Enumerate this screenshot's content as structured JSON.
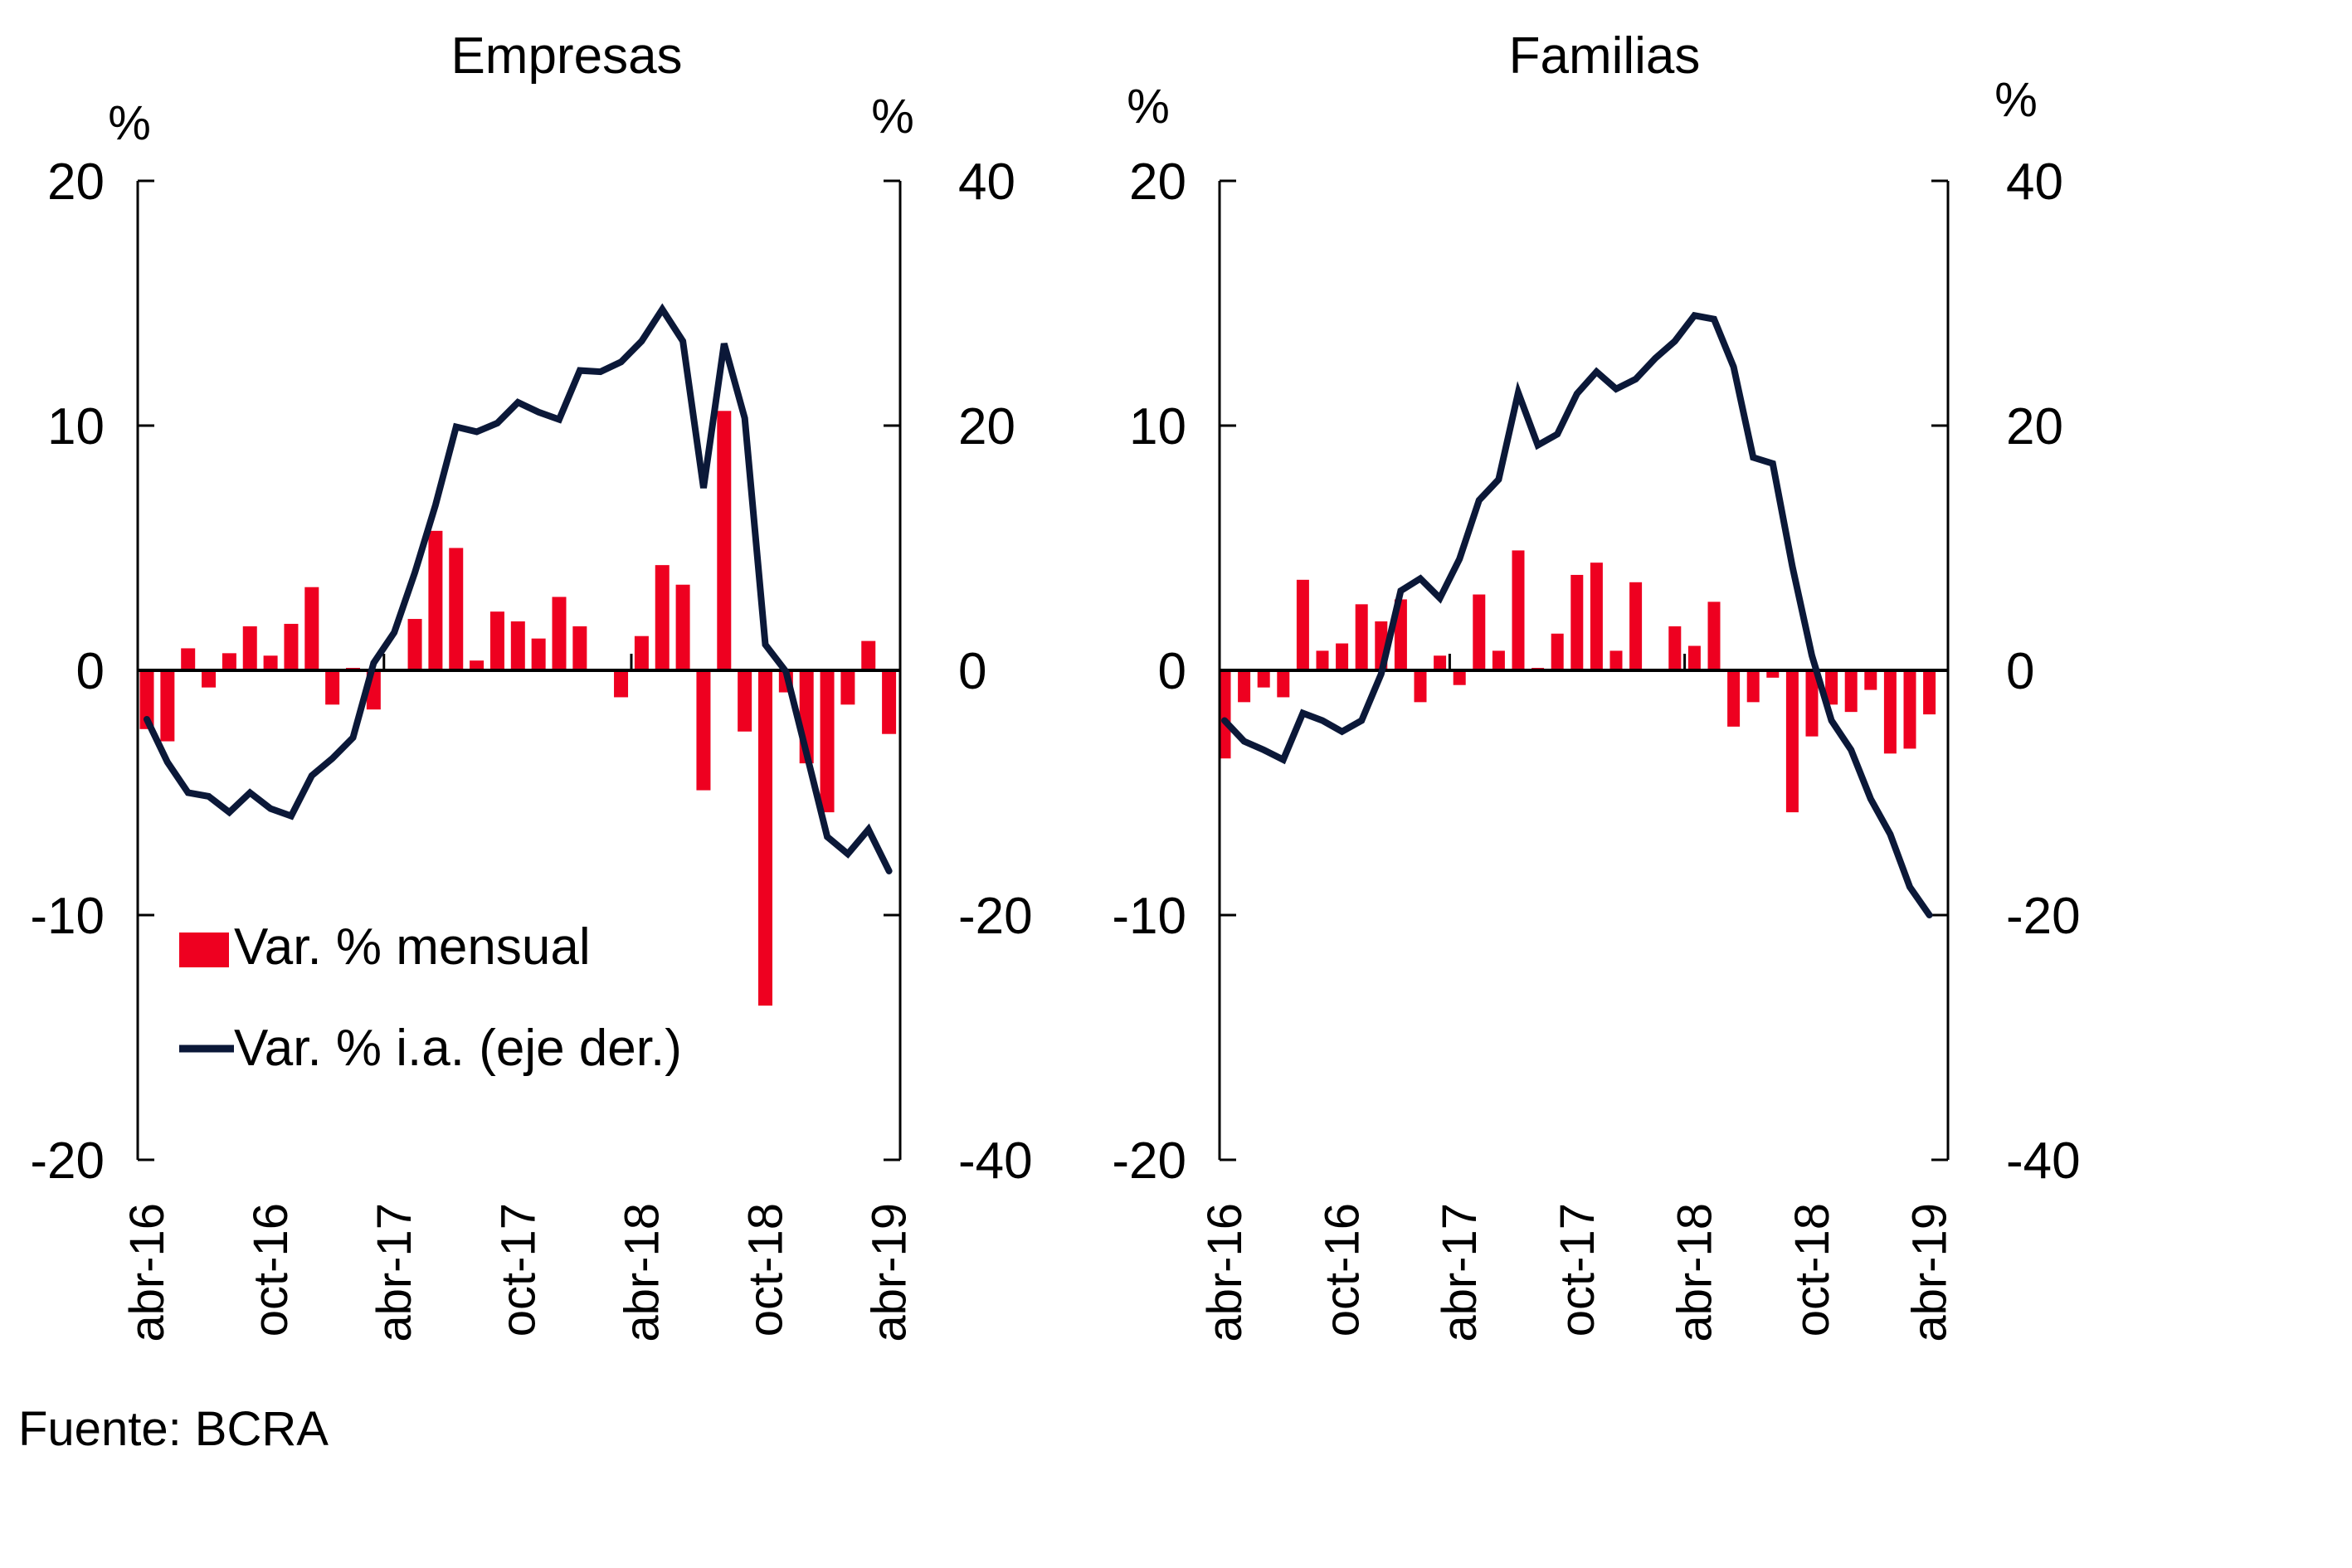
{
  "source": "Fuente: BCRA",
  "colors": {
    "bar": "#EE0020",
    "line": "#0B1838",
    "axis": "#000000"
  },
  "legend": {
    "bar_label": "Var. % mensual",
    "line_label": "Var. % i.a. (eje der.)"
  },
  "chart_data": [
    {
      "type": "bar+line",
      "title": "Empresas",
      "left_axis": {
        "unit": "%",
        "ylim": [
          -20,
          20
        ],
        "ticks": [
          20,
          10,
          0,
          -10,
          -20
        ]
      },
      "right_axis": {
        "unit": "%",
        "ylim": [
          -40,
          40
        ],
        "ticks": [
          40,
          20,
          0,
          -20,
          -40
        ]
      },
      "x_tick_labels": [
        "abr-16",
        "oct-16",
        "abr-17",
        "oct-17",
        "abr-18",
        "oct-18",
        "abr-19"
      ],
      "months": [
        "abr-16",
        "may-16",
        "jun-16",
        "jul-16",
        "ago-16",
        "sep-16",
        "oct-16",
        "nov-16",
        "dic-16",
        "ene-17",
        "feb-17",
        "mar-17",
        "abr-17",
        "may-17",
        "jun-17",
        "jul-17",
        "ago-17",
        "sep-17",
        "oct-17",
        "nov-17",
        "dic-17",
        "ene-18",
        "feb-18",
        "mar-18",
        "abr-18",
        "may-18",
        "jun-18",
        "jul-18",
        "ago-18",
        "sep-18",
        "oct-18",
        "nov-18",
        "dic-18",
        "ene-19",
        "feb-19",
        "mar-19",
        "abr-19"
      ],
      "series": [
        {
          "name": "Var. % mensual",
          "kind": "bar",
          "axis": "left",
          "values": [
            -2.4,
            -2.9,
            0.9,
            -0.7,
            0.7,
            1.8,
            0.6,
            1.9,
            3.4,
            -1.4,
            0.1,
            -1.6,
            0.0,
            2.1,
            5.7,
            5.0,
            0.4,
            2.4,
            2.0,
            1.3,
            3.0,
            1.8,
            0.0,
            -1.1,
            1.4,
            4.3,
            3.5,
            -4.9,
            10.6,
            -2.5,
            -13.7,
            -0.9,
            -3.8,
            -5.8,
            -1.4,
            1.2,
            -2.6
          ]
        },
        {
          "name": "Var. % i.a. (eje der.)",
          "kind": "line",
          "axis": "right",
          "values": [
            -4.0,
            -7.5,
            -10.0,
            -10.3,
            -11.6,
            -10.0,
            -11.3,
            -11.9,
            -8.6,
            -7.2,
            -5.5,
            0.6,
            3.1,
            8.0,
            13.5,
            19.9,
            19.5,
            20.2,
            21.9,
            21.1,
            20.5,
            24.5,
            24.4,
            25.2,
            26.9,
            29.5,
            26.9,
            14.9,
            26.7,
            20.6,
            2.1,
            -0.1,
            -6.8,
            -13.6,
            -15.0,
            -13.0,
            -16.4
          ]
        }
      ],
      "legend_position": "lower-left"
    },
    {
      "type": "bar+line",
      "title": "Familias",
      "left_axis": {
        "unit": "%",
        "ylim": [
          -20,
          20
        ],
        "ticks": [
          20,
          10,
          0,
          -10,
          -20
        ]
      },
      "right_axis": {
        "unit": "%",
        "ylim": [
          -40,
          40
        ],
        "ticks": [
          40,
          20,
          0,
          -20,
          -40
        ]
      },
      "x_tick_labels": [
        "abr-16",
        "oct-16",
        "abr-17",
        "oct-17",
        "abr-18",
        "oct-18",
        "abr-19"
      ],
      "months": [
        "abr-16",
        "may-16",
        "jun-16",
        "jul-16",
        "ago-16",
        "sep-16",
        "oct-16",
        "nov-16",
        "dic-16",
        "ene-17",
        "feb-17",
        "mar-17",
        "abr-17",
        "may-17",
        "jun-17",
        "jul-17",
        "ago-17",
        "sep-17",
        "oct-17",
        "nov-17",
        "dic-17",
        "ene-18",
        "feb-18",
        "mar-18",
        "abr-18",
        "may-18",
        "jun-18",
        "jul-18",
        "ago-18",
        "sep-18",
        "oct-18",
        "nov-18",
        "dic-18",
        "ene-19",
        "feb-19",
        "mar-19",
        "abr-19"
      ],
      "series": [
        {
          "name": "Var. % mensual",
          "kind": "bar",
          "axis": "left",
          "values": [
            -3.6,
            -1.3,
            -0.7,
            -1.1,
            3.7,
            0.8,
            1.1,
            2.7,
            2.0,
            2.9,
            -1.3,
            0.6,
            -0.6,
            3.1,
            0.8,
            4.9,
            0.1,
            1.5,
            3.9,
            4.4,
            0.8,
            3.6,
            0.0,
            1.8,
            1.0,
            2.8,
            -2.3,
            -1.3,
            -0.3,
            -5.8,
            -2.7,
            -1.4,
            -1.7,
            -0.8,
            -3.4,
            -3.2,
            -1.8
          ]
        },
        {
          "name": "Var. % i.a. (eje der.)",
          "kind": "line",
          "axis": "right",
          "values": [
            -4.1,
            -5.8,
            -6.5,
            -7.3,
            -3.5,
            -4.1,
            -5.0,
            -4.1,
            -0.3,
            6.5,
            7.5,
            5.9,
            9.1,
            13.9,
            15.6,
            22.7,
            18.4,
            19.3,
            22.6,
            24.4,
            23.0,
            23.8,
            25.5,
            26.9,
            29.0,
            28.7,
            24.8,
            17.4,
            16.9,
            8.5,
            1.2,
            -4.1,
            -6.5,
            -10.5,
            -13.4,
            -17.7,
            -20.0
          ]
        }
      ]
    }
  ]
}
